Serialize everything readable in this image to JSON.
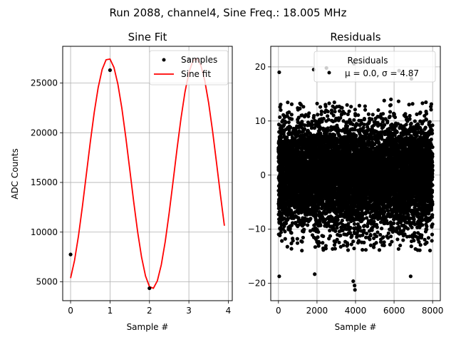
{
  "figure": {
    "suptitle": "Run 2088, channel4, Sine Freq.: 18.005 MHz"
  },
  "chart_data": [
    {
      "type": "line",
      "title": "Sine Fit",
      "xlabel": "Sample #",
      "ylabel": "ADC Counts",
      "xlim": [
        -0.2,
        4.1
      ],
      "ylim": [
        3100,
        28700
      ],
      "grid": true,
      "x_ticks": [
        0,
        1,
        2,
        3,
        4
      ],
      "y_ticks": [
        5000,
        10000,
        15000,
        20000,
        25000
      ],
      "x_tick_labels": [
        "0",
        "1",
        "2",
        "3",
        "4"
      ],
      "y_tick_labels": [
        "5000",
        "10000",
        "15000",
        "20000",
        "25000"
      ],
      "legend_position": "upper right",
      "sine_model": {
        "amplitude": 11600,
        "offset": 15900,
        "period_samples": 2.221,
        "phase_at_zero_deg": -65.2,
        "x_range": [
          0,
          3.9
        ]
      },
      "series": [
        {
          "name": "Samples",
          "kind": "scatter",
          "color": "#000000",
          "x": [
            0,
            1,
            2,
            3
          ],
          "y": [
            7750,
            26300,
            4350,
            27400
          ]
        },
        {
          "name": "Sine fit",
          "kind": "line",
          "color": "#ff0000"
        }
      ]
    },
    {
      "type": "scatter",
      "title": "Residuals",
      "xlabel": "Sample #",
      "ylabel": "",
      "xlim": [
        -400,
        8400
      ],
      "ylim": [
        -23.2,
        23.8
      ],
      "grid": true,
      "x_ticks": [
        0,
        2000,
        4000,
        6000,
        8000
      ],
      "y_ticks": [
        -20,
        -10,
        0,
        10,
        20
      ],
      "x_tick_labels": [
        "0",
        "2000",
        "4000",
        "6000",
        "8000"
      ],
      "y_tick_labels": [
        "−20",
        "−10",
        "0",
        "10",
        "20"
      ],
      "legend_position": "upper right",
      "legend_title": "Residuals",
      "legend_stats": "μ = 0.0, σ = 4.87",
      "n_points": 8000,
      "mean": 0.0,
      "sigma": 4.87,
      "min": -21.2,
      "max": 20.6,
      "series": [
        {
          "name": "Residuals",
          "kind": "scatter",
          "color": "#000000",
          "summary": "8000 residual points spread over ±10 around 0 with sparse outliers reaching about ±20",
          "outliers": [
            {
              "x": 40,
              "y": 19.0
            },
            {
              "x": 40,
              "y": -18.7
            },
            {
              "x": 1830,
              "y": 19.5
            },
            {
              "x": 2490,
              "y": 19.8
            },
            {
              "x": 3920,
              "y": 20.6
            },
            {
              "x": 3950,
              "y": -20.4
            },
            {
              "x": 3970,
              "y": -21.2
            },
            {
              "x": 3880,
              "y": -19.6
            },
            {
              "x": 1880,
              "y": -18.3
            },
            {
              "x": 6860,
              "y": -18.7
            },
            {
              "x": 6260,
              "y": 19.3
            },
            {
              "x": 6900,
              "y": 17.8
            }
          ]
        }
      ]
    }
  ]
}
